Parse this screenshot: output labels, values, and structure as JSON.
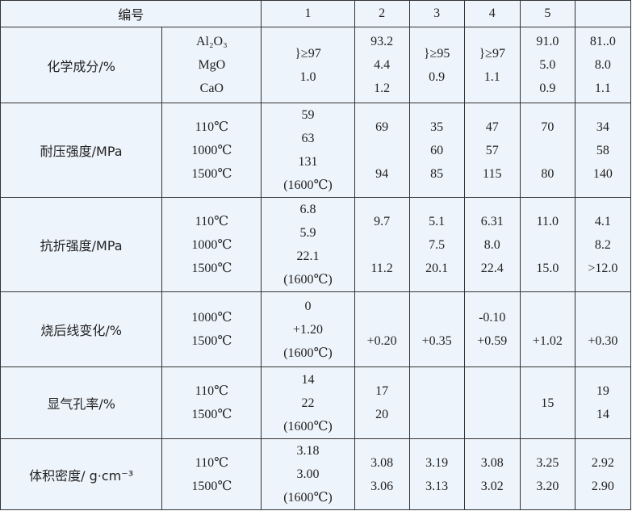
{
  "header": {
    "label": "编号",
    "columns": [
      "1",
      "2",
      "3",
      "4",
      "5",
      ""
    ]
  },
  "rows": [
    {
      "label": "化学成分/%",
      "sub": [
        "Al₂O₃",
        "MgO",
        "CaO"
      ],
      "cells": [
        [
          "}≥97",
          "1.0"
        ],
        [
          "93.2",
          "4.4",
          "1.2"
        ],
        [
          "}≥95",
          "0.9"
        ],
        [
          "}≥97",
          "1.1"
        ],
        [
          "91.0",
          "5.0",
          "0.9"
        ],
        [
          "81..0",
          "8.0",
          "1.1"
        ]
      ]
    },
    {
      "label": "耐压强度/MPa",
      "sub": [
        "110℃",
        "1000℃",
        "1500℃"
      ],
      "cells": [
        [
          "59",
          "63",
          "131",
          "(1600℃)"
        ],
        [
          "69",
          "",
          "94"
        ],
        [
          "35",
          "60",
          "85"
        ],
        [
          "47",
          "57",
          "115"
        ],
        [
          "70",
          "",
          "80"
        ],
        [
          "34",
          "58",
          "140"
        ]
      ]
    },
    {
      "label": "抗折强度/MPa",
      "sub": [
        "110℃",
        "1000℃",
        "1500℃"
      ],
      "cells": [
        [
          "6.8",
          "5.9",
          "22.1",
          "(1600℃)"
        ],
        [
          "9.7",
          "",
          "11.2"
        ],
        [
          "5.1",
          "7.5",
          "20.1"
        ],
        [
          "6.31",
          "8.0",
          "22.4"
        ],
        [
          "11.0",
          "",
          "15.0"
        ],
        [
          "4.1",
          "8.2",
          ">12.0"
        ]
      ]
    },
    {
      "label": "烧后线变化/%",
      "sub": [
        "1000℃",
        "1500℃"
      ],
      "cells": [
        [
          "0",
          "+1.20",
          "(1600℃)"
        ],
        [
          "",
          "+0.20"
        ],
        [
          "",
          "+0.35"
        ],
        [
          "-0.10",
          "+0.59"
        ],
        [
          "",
          "+1.02"
        ],
        [
          "",
          "+0.30"
        ]
      ]
    },
    {
      "label": "显气孔率/%",
      "sub": [
        "110℃",
        "1500℃"
      ],
      "cells": [
        [
          "14",
          "22",
          "(1600℃)"
        ],
        [
          "17",
          "20"
        ],
        [],
        [],
        [
          "15"
        ],
        [
          "19",
          "14"
        ]
      ]
    },
    {
      "label": "体积密度/ g·cm⁻³",
      "sub": [
        "110℃",
        "1500℃"
      ],
      "cells": [
        [
          "3.18",
          "3.00",
          "(1600℃)"
        ],
        [
          "3.08",
          "3.06"
        ],
        [
          "3.19",
          "3.13"
        ],
        [
          "3.08",
          "3.02"
        ],
        [
          "3.25",
          "3.20"
        ],
        [
          "2.92",
          "2.90"
        ]
      ]
    }
  ]
}
